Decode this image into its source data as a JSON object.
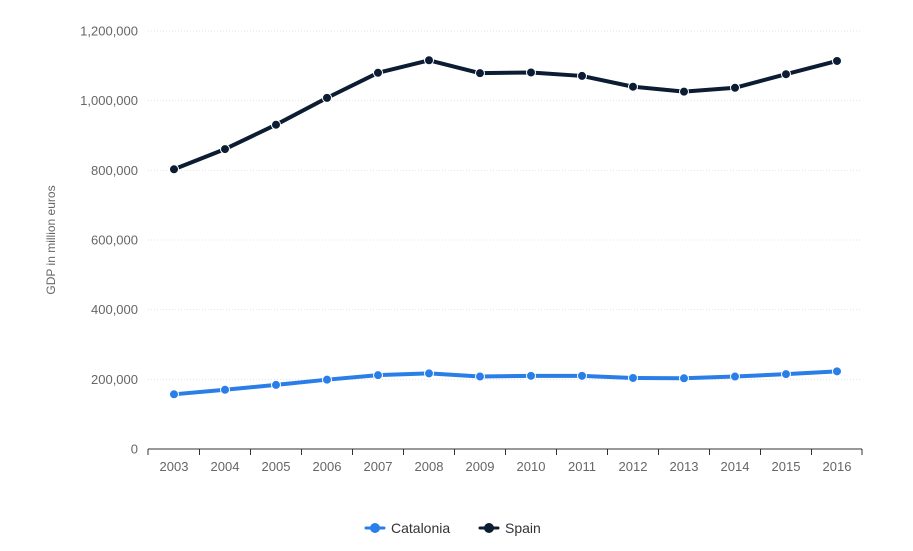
{
  "chart_data": {
    "type": "line",
    "title": "",
    "xlabel": "",
    "ylabel": "GDP in million euros",
    "ylim": [
      0,
      1200000
    ],
    "yticks": [
      0,
      200000,
      400000,
      600000,
      800000,
      1000000,
      1200000
    ],
    "ytick_labels": [
      "0",
      "200,000",
      "400,000",
      "600,000",
      "800,000",
      "1,000,000",
      "1,200,000"
    ],
    "categories": [
      "2003",
      "2004",
      "2005",
      "2006",
      "2007",
      "2008",
      "2009",
      "2010",
      "2011",
      "2012",
      "2013",
      "2014",
      "2015",
      "2016"
    ],
    "grid": true,
    "legend_position": "bottom-center",
    "series": [
      {
        "name": "Catalonia",
        "color": "#2a7ee8",
        "values": [
          157000,
          170000,
          184000,
          199000,
          212000,
          217000,
          208000,
          210000,
          210000,
          204000,
          203000,
          208000,
          215000,
          223000
        ]
      },
      {
        "name": "Spain",
        "color": "#0b1c33",
        "values": [
          803000,
          861000,
          931000,
          1008000,
          1080000,
          1116000,
          1079000,
          1081000,
          1071000,
          1040000,
          1026000,
          1037000,
          1076000,
          1114000
        ]
      }
    ]
  }
}
